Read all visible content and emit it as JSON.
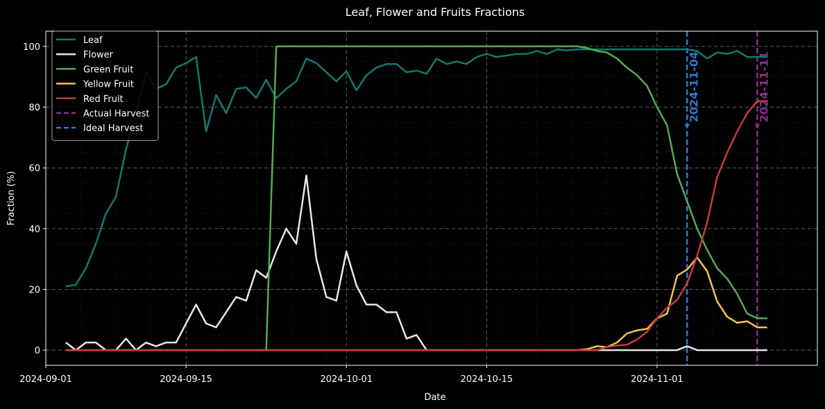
{
  "chart_data": {
    "type": "line",
    "title": "Leaf, Flower and Fruits Fractions",
    "xlabel": "Date",
    "ylabel": "Fraction (%)",
    "x_type": "date",
    "xlim": [
      "2024-09-01",
      "2024-11-17"
    ],
    "ylim": [
      -5,
      105
    ],
    "x_ticks": [
      "2024-09-01",
      "2024-09-15",
      "2024-10-01",
      "2024-10-15",
      "2024-11-01"
    ],
    "y_ticks": [
      0,
      20,
      40,
      60,
      80,
      100
    ],
    "grid": true,
    "legend_position": "top-left",
    "x": [
      "2024-09-03",
      "2024-09-04",
      "2024-09-05",
      "2024-09-06",
      "2024-09-07",
      "2024-09-08",
      "2024-09-09",
      "2024-09-10",
      "2024-09-11",
      "2024-09-12",
      "2024-09-13",
      "2024-09-14",
      "2024-09-15",
      "2024-09-16",
      "2024-09-17",
      "2024-09-18",
      "2024-09-19",
      "2024-09-20",
      "2024-09-21",
      "2024-09-22",
      "2024-09-23",
      "2024-09-24",
      "2024-09-25",
      "2024-09-26",
      "2024-09-27",
      "2024-09-28",
      "2024-09-29",
      "2024-09-30",
      "2024-10-01",
      "2024-10-02",
      "2024-10-03",
      "2024-10-04",
      "2024-10-05",
      "2024-10-06",
      "2024-10-07",
      "2024-10-08",
      "2024-10-09",
      "2024-10-10",
      "2024-10-11",
      "2024-10-12",
      "2024-10-13",
      "2024-10-14",
      "2024-10-15",
      "2024-10-16",
      "2024-10-17",
      "2024-10-18",
      "2024-10-19",
      "2024-10-20",
      "2024-10-21",
      "2024-10-22",
      "2024-10-23",
      "2024-10-24",
      "2024-10-25",
      "2024-10-26",
      "2024-10-27",
      "2024-10-28",
      "2024-10-29",
      "2024-10-30",
      "2024-10-31",
      "2024-11-01",
      "2024-11-02",
      "2024-11-03",
      "2024-11-04",
      "2024-11-05",
      "2024-11-06",
      "2024-11-07",
      "2024-11-08",
      "2024-11-09",
      "2024-11-10",
      "2024-11-11",
      "2024-11-12"
    ],
    "series": [
      {
        "name": "Leaf",
        "color": "#137a6f",
        "values": [
          21,
          21.5,
          27,
          35,
          45,
          50.5,
          66,
          78,
          91.5,
          86,
          87.5,
          93,
          94.5,
          96.5,
          72,
          84,
          78,
          86,
          86.5,
          83,
          89,
          83,
          86,
          88.5,
          96,
          94.5,
          91.5,
          88.5,
          91.8,
          85.5,
          90.5,
          93,
          94.2,
          94.2,
          91.5,
          92,
          91,
          96,
          94.2,
          95,
          94.2,
          96.5,
          97.5,
          96.5,
          97,
          97.5,
          97.5,
          98.5,
          97.5,
          99,
          98.7,
          99,
          99,
          99,
          99,
          99,
          99,
          99,
          99,
          99,
          99,
          99,
          99,
          98.5,
          96,
          98,
          97.5,
          98.5,
          96.5,
          96.5,
          96.5
        ]
      },
      {
        "name": "Flower",
        "color": "#e8e8e8",
        "values": [
          2.5,
          0,
          2.5,
          2.5,
          0,
          0,
          3.8,
          0,
          2.5,
          1.3,
          2.5,
          2.5,
          8.8,
          15,
          8.8,
          7.5,
          12.5,
          17.5,
          16.3,
          26.3,
          23.8,
          32.5,
          40,
          35,
          57.5,
          30,
          17.5,
          16.3,
          32.5,
          21.3,
          15,
          15,
          12.5,
          12.5,
          3.8,
          5,
          0,
          0,
          0,
          0,
          0,
          0,
          0,
          0,
          0,
          0,
          0,
          0,
          0,
          0,
          0,
          0,
          0,
          0,
          0,
          0,
          0,
          0,
          0,
          0,
          0,
          0,
          1.3,
          0,
          0,
          0,
          0,
          0,
          0,
          0,
          0
        ]
      },
      {
        "name": "Green Fruit",
        "color": "#55aa55",
        "values": [
          0,
          0,
          0,
          0,
          0,
          0,
          0,
          0,
          0,
          0,
          0,
          0,
          0,
          0,
          0,
          0,
          0,
          0,
          0,
          0,
          0,
          100,
          100,
          100,
          100,
          100,
          100,
          100,
          100,
          100,
          100,
          100,
          100,
          100,
          100,
          100,
          100,
          100,
          100,
          100,
          100,
          100,
          100,
          100,
          100,
          100,
          100,
          100,
          100,
          100,
          100,
          100,
          99.5,
          98.5,
          98,
          96,
          93,
          90.5,
          87,
          80,
          74,
          58,
          49,
          40,
          33,
          27,
          23.5,
          18.5,
          12,
          10.5,
          10.5
        ]
      },
      {
        "name": "Yellow Fruit",
        "color": "#f5c452",
        "values": [
          0,
          0,
          0,
          0,
          0,
          0,
          0,
          0,
          0,
          0,
          0,
          0,
          0,
          0,
          0,
          0,
          0,
          0,
          0,
          0,
          0,
          0,
          0,
          0,
          0,
          0,
          0,
          0,
          0,
          0,
          0,
          0,
          0,
          0,
          0,
          0,
          0,
          0,
          0,
          0,
          0,
          0,
          0,
          0,
          0,
          0,
          0,
          0,
          0,
          0,
          0,
          0,
          0.3,
          1.3,
          1,
          2.5,
          5.5,
          6.5,
          7,
          10.5,
          12,
          24.5,
          26.5,
          30.5,
          26,
          16,
          11,
          9,
          9.5,
          7.5,
          7.5
        ]
      },
      {
        "name": "Red Fruit",
        "color": "#c43c3c",
        "values": [
          0,
          0,
          0,
          0,
          0,
          0,
          0,
          0,
          0,
          0,
          0,
          0,
          0,
          0,
          0,
          0,
          0,
          0,
          0,
          0,
          0,
          0,
          0,
          0,
          0,
          0,
          0,
          0,
          0,
          0,
          0,
          0,
          0,
          0,
          0,
          0,
          0,
          0,
          0,
          0,
          0,
          0,
          0,
          0,
          0,
          0,
          0,
          0,
          0,
          0,
          0,
          0,
          0,
          0,
          1,
          1.5,
          1.8,
          3.5,
          6,
          10.5,
          14,
          16.5,
          22,
          31,
          42,
          57,
          65,
          72,
          78,
          82,
          82
        ]
      }
    ],
    "vlines": [
      {
        "name": "Actual Harvest",
        "date": "2024-11-11",
        "label": "2024-11-11",
        "color": "#8b2f8b"
      },
      {
        "name": "Ideal Harvest",
        "date": "2024-11-04",
        "label": "2024-11-04",
        "color": "#2f78c8"
      }
    ]
  }
}
